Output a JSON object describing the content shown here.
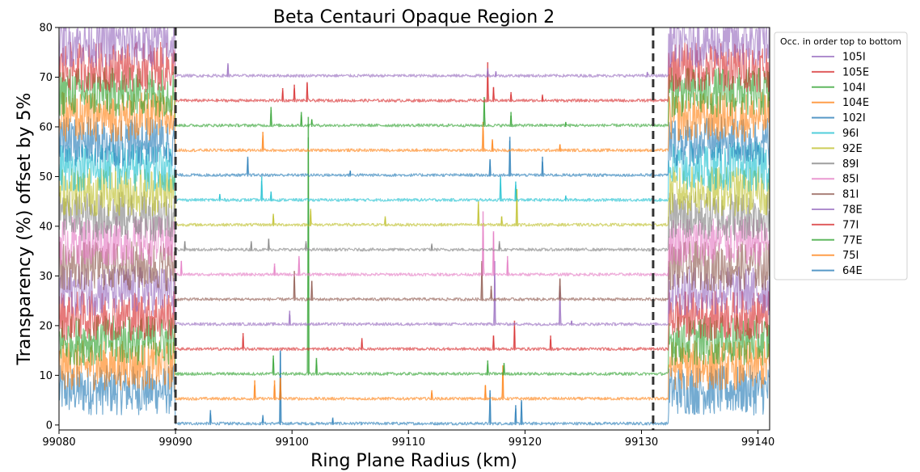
{
  "chart_data": {
    "type": "line",
    "title": "Beta Centauri Opaque Region 2",
    "xlabel": "Ring Plane Radius (km)",
    "ylabel": "Transparency (%) offset by 5%",
    "xlim": [
      99080,
      99141
    ],
    "ylim": [
      -1,
      80
    ],
    "xticks": [
      99080,
      99090,
      99100,
      99110,
      99120,
      99130,
      99140
    ],
    "yticks": [
      0,
      10,
      20,
      30,
      40,
      50,
      60,
      70,
      80
    ],
    "region_boundaries": [
      99090,
      99131
    ],
    "offset_step": 5,
    "grid": false,
    "legend": {
      "title": "Occ. in order top to bottom",
      "placement": "outside-right"
    },
    "series": [
      {
        "name": "105I",
        "baseline": 70,
        "color": "#9467bd",
        "spikes": [
          [
            99094.5,
            2.8
          ],
          [
            99116.8,
            1.8
          ],
          [
            99117.5,
            1.2
          ],
          [
            99130.5,
            1.0
          ]
        ]
      },
      {
        "name": "105E",
        "baseline": 65,
        "color": "#d62728",
        "spikes": [
          [
            99099.2,
            2.8
          ],
          [
            99100.2,
            3.5
          ],
          [
            99101.3,
            4.0
          ],
          [
            99116.8,
            8.0
          ],
          [
            99117.3,
            3.0
          ],
          [
            99118.8,
            2.0
          ],
          [
            99121.5,
            1.5
          ]
        ]
      },
      {
        "name": "104I",
        "baseline": 60,
        "color": "#2ca02c",
        "spikes": [
          [
            99098.2,
            4.0
          ],
          [
            99100.8,
            3.0
          ],
          [
            99101.7,
            1.5
          ],
          [
            99116.5,
            6.0
          ],
          [
            99118.8,
            3.0
          ],
          [
            99123.5,
            1.0
          ]
        ]
      },
      {
        "name": "104E",
        "baseline": 55,
        "color": "#ff7f0e",
        "spikes": [
          [
            99097.5,
            4.0
          ],
          [
            99116.4,
            6.0
          ],
          [
            99117.2,
            2.5
          ],
          [
            99123.0,
            1.5
          ]
        ]
      },
      {
        "name": "102I",
        "baseline": 50,
        "color": "#1f77b4",
        "spikes": [
          [
            99096.2,
            4.0
          ],
          [
            99105.0,
            1.2
          ],
          [
            99117.0,
            3.5
          ],
          [
            99118.7,
            8.0
          ],
          [
            99121.5,
            4.0
          ]
        ]
      },
      {
        "name": "96I",
        "baseline": 45,
        "color": "#17becf",
        "spikes": [
          [
            99093.8,
            1.5
          ],
          [
            99097.4,
            5.0
          ],
          [
            99098.2,
            2.0
          ],
          [
            99117.9,
            5.0
          ],
          [
            99119.2,
            4.0
          ],
          [
            99123.5,
            1.2
          ]
        ]
      },
      {
        "name": "92E",
        "baseline": 40,
        "color": "#bcbd22",
        "spikes": [
          [
            99098.4,
            2.5
          ],
          [
            99101.6,
            3.5
          ],
          [
            99108.0,
            2.0
          ],
          [
            99116.0,
            5.0
          ],
          [
            99118.0,
            2.0
          ],
          [
            99119.3,
            7.5
          ]
        ]
      },
      {
        "name": "89I",
        "baseline": 35,
        "color": "#7f7f7f",
        "spikes": [
          [
            99090.8,
            2.0
          ],
          [
            99096.5,
            2.0
          ],
          [
            99098.0,
            2.5
          ],
          [
            99101.2,
            2.0
          ],
          [
            99112.0,
            1.5
          ],
          [
            99117.8,
            2.0
          ]
        ]
      },
      {
        "name": "85I",
        "baseline": 30,
        "color": "#e377c2",
        "spikes": [
          [
            99090.5,
            3.0
          ],
          [
            99098.5,
            2.5
          ],
          [
            99100.6,
            4.0
          ],
          [
            99116.4,
            13.0
          ],
          [
            99117.3,
            9.0
          ],
          [
            99118.5,
            4.0
          ]
        ]
      },
      {
        "name": "81I",
        "baseline": 25,
        "color": "#8c564b",
        "spikes": [
          [
            99100.2,
            6.0
          ],
          [
            99101.7,
            4.0
          ],
          [
            99116.3,
            8.0
          ],
          [
            99117.1,
            3.0
          ],
          [
            99123.0,
            4.5
          ]
        ]
      },
      {
        "name": "78E",
        "baseline": 20,
        "color": "#9467bd",
        "spikes": [
          [
            99099.8,
            3.0
          ],
          [
            99117.4,
            13.0
          ],
          [
            99123.0,
            8.0
          ],
          [
            99124.0,
            1.0
          ]
        ]
      },
      {
        "name": "77I",
        "baseline": 15,
        "color": "#d62728",
        "spikes": [
          [
            99095.8,
            3.5
          ],
          [
            99106.0,
            2.5
          ],
          [
            99117.3,
            3.0
          ],
          [
            99119.1,
            6.0
          ],
          [
            99122.2,
            3.0
          ]
        ]
      },
      {
        "name": "77E",
        "baseline": 10,
        "color": "#2ca02c",
        "spikes": [
          [
            99098.4,
            4.0
          ],
          [
            99101.4,
            52.0
          ],
          [
            99102.1,
            3.5
          ],
          [
            99116.8,
            3.0
          ],
          [
            99118.2,
            2.5
          ]
        ]
      },
      {
        "name": "75I",
        "baseline": 5,
        "color": "#ff7f0e",
        "spikes": [
          [
            99096.8,
            4.0
          ],
          [
            99098.5,
            4.0
          ],
          [
            99099.0,
            4.5
          ],
          [
            99112.0,
            2.0
          ],
          [
            99116.6,
            3.0
          ],
          [
            99118.1,
            7.0
          ]
        ]
      },
      {
        "name": "64E",
        "baseline": 0,
        "color": "#1f77b4",
        "spikes": [
          [
            99093.0,
            3.0
          ],
          [
            99097.5,
            2.0
          ],
          [
            99099.0,
            15.0
          ],
          [
            99103.5,
            1.5
          ],
          [
            99117.0,
            7.0
          ],
          [
            99119.2,
            4.0
          ],
          [
            99119.7,
            5.0
          ]
        ]
      }
    ]
  }
}
